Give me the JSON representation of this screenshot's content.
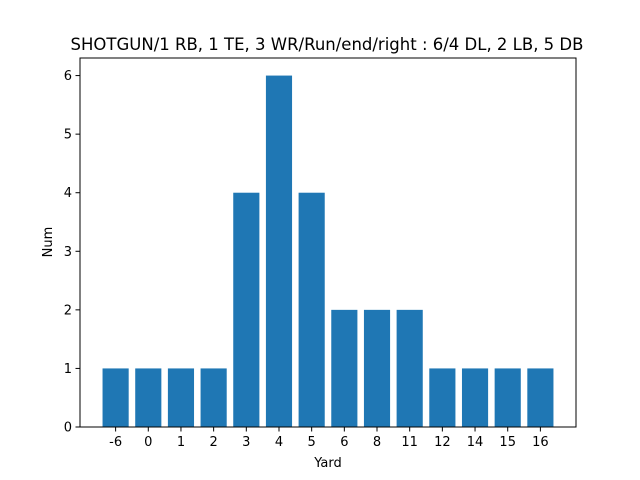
{
  "chart_data": {
    "type": "bar",
    "title": "SHOTGUN/1 RB, 1 TE, 3 WR/Run/end/right : 6/4 DL, 2 LB, 5 DB",
    "xlabel": "Yard",
    "ylabel": "Num",
    "categories": [
      "-6",
      "0",
      "1",
      "2",
      "3",
      "4",
      "5",
      "6",
      "8",
      "11",
      "12",
      "14",
      "15",
      "16"
    ],
    "values": [
      1,
      1,
      1,
      1,
      4,
      6,
      4,
      2,
      2,
      2,
      1,
      1,
      1,
      1
    ],
    "ylim": [
      0,
      6.3
    ],
    "yticks": [
      0,
      1,
      2,
      3,
      4,
      5,
      6
    ],
    "bar_color": "#1f77b4",
    "grid": false,
    "legend": "none"
  }
}
